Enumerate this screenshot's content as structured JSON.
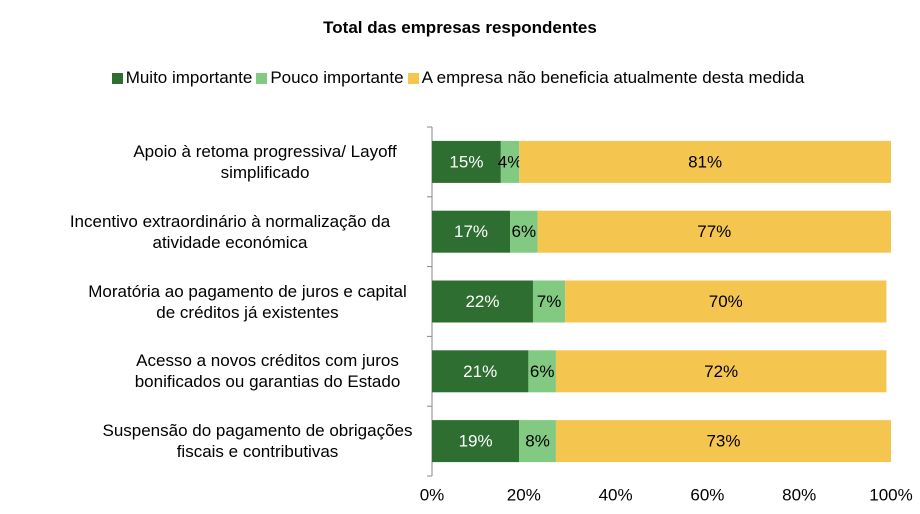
{
  "chart_data": {
    "type": "stacked_barh",
    "title": "Total das empresas respondentes",
    "categories": [
      "Apoio à retoma progressiva/ Layoff simplificado",
      "Incentivo extraordinário à normalização da atividade económica",
      "Moratória ao pagamento de juros e capital de créditos já existentes",
      "Acesso a novos créditos com juros bonificados ou garantias do Estado",
      "Suspensão do pagamento de obrigações fiscais e contributivas"
    ],
    "series": [
      {
        "name": "Muito importante",
        "color": "#2f6e31",
        "values": [
          15,
          17,
          22,
          21,
          19
        ],
        "value_labels": [
          "15%",
          "17%",
          "22%",
          "21%",
          "19%"
        ]
      },
      {
        "name": "Pouco importante",
        "color": "#82c982",
        "values": [
          4,
          6,
          7,
          6,
          8
        ],
        "value_labels": [
          "4%",
          "6%",
          "7%",
          "6%",
          "8%"
        ]
      },
      {
        "name": "A empresa não beneficia atualmente desta medida",
        "color": "#f4c54f",
        "values": [
          81,
          77,
          70,
          72,
          73
        ],
        "value_labels": [
          "81%",
          "77%",
          "70%",
          "72%",
          "73%"
        ]
      }
    ],
    "xlim": [
      0,
      100
    ],
    "xticks": [
      {
        "value": 0,
        "label": "0%"
      },
      {
        "value": 20,
        "label": "20%"
      },
      {
        "value": 40,
        "label": "40%"
      },
      {
        "value": 60,
        "label": "60%"
      },
      {
        "value": 80,
        "label": "80%"
      },
      {
        "value": 100,
        "label": "100%"
      }
    ],
    "legend": "top"
  }
}
